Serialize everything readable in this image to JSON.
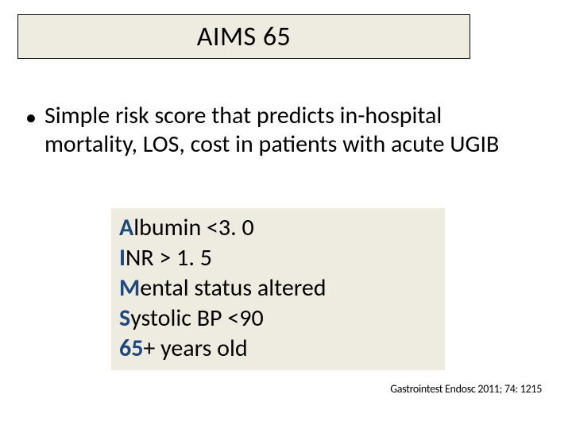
{
  "title": "AIMS 65",
  "bullet": "Simple risk score that predicts in-hospital mortality, LOS, cost in patients with acute UGIB",
  "criteria": [
    {
      "lead": "A",
      "rest": "lbumin <3. 0"
    },
    {
      "lead": "I",
      "rest": "NR > 1. 5"
    },
    {
      "lead": "M",
      "rest": "ental status altered"
    },
    {
      "lead": "S",
      "rest": "ystolic BP <90"
    },
    {
      "lead": "65",
      "rest": "+ years old"
    }
  ],
  "citation": "Gastrointest Endosc 2011; 74: 1215",
  "colors": {
    "box_bg": "#eeece1",
    "lead_color": "#1f497d",
    "text": "#000000",
    "page_bg": "#ffffff"
  },
  "fontsizes": {
    "title": 34,
    "body": 30,
    "citation": 14
  }
}
